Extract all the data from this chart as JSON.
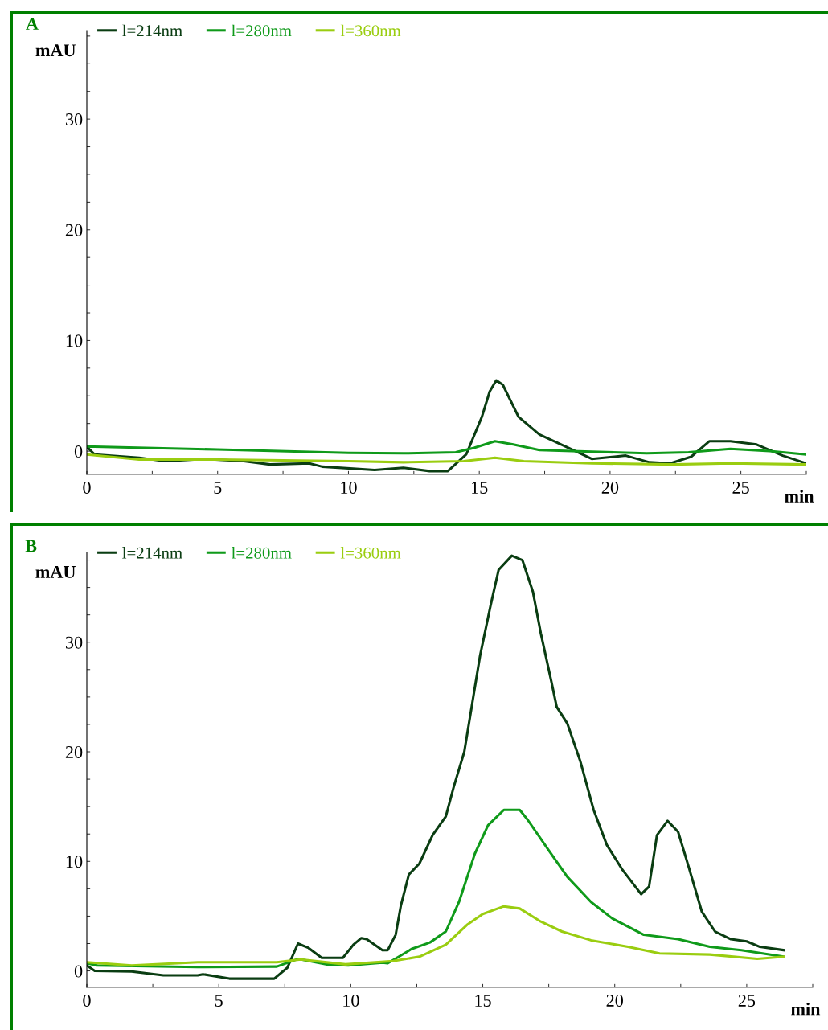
{
  "chart_data": [
    {
      "type": "line",
      "title": "A",
      "xlabel": "min",
      "ylabel": "mAU",
      "xlim": [
        0,
        27.5
      ],
      "ylim": [
        -2.1,
        38
      ],
      "xticks": [
        0,
        5,
        10,
        15,
        20,
        25
      ],
      "yticks": [
        0,
        10,
        20,
        30
      ],
      "legend": "top left",
      "series": [
        {
          "name": "l=214nm",
          "color": "#0a3d12",
          "x": [
            0,
            0.3,
            2,
            3,
            4.5,
            6,
            7,
            8.5,
            9,
            11,
            12.1,
            13.1,
            13.8,
            14.5,
            15.1,
            15.4,
            15.65,
            15.9,
            16.5,
            17.3,
            18.5,
            19.3,
            20.6,
            21.5,
            22.3,
            23.1,
            23.8,
            24.6,
            25.6,
            26.6,
            27.5
          ],
          "values": [
            0.4,
            -0.3,
            -0.6,
            -0.9,
            -0.7,
            -0.9,
            -1.2,
            -1.1,
            -1.4,
            -1.7,
            -1.5,
            -1.8,
            -1.8,
            -0.3,
            3.1,
            5.4,
            6.4,
            6.0,
            3.1,
            1.5,
            0.2,
            -0.7,
            -0.4,
            -1.0,
            -1.1,
            -0.5,
            0.9,
            0.9,
            0.6,
            -0.4,
            -1.1
          ]
        },
        {
          "name": "l=280nm",
          "color": "#0f9a1a",
          "x": [
            0,
            0.3,
            5,
            10,
            12.1,
            14.1,
            14.8,
            15.6,
            16.3,
            17.3,
            19.3,
            21.4,
            23.0,
            24.6,
            26.1,
            27.5
          ],
          "values": [
            0.4,
            0.4,
            0.15,
            -0.15,
            -0.2,
            -0.1,
            0.3,
            0.9,
            0.6,
            0.1,
            -0.05,
            -0.2,
            -0.1,
            0.2,
            0.0,
            -0.3
          ]
        },
        {
          "name": "l=360nm",
          "color": "#9acd10",
          "x": [
            0,
            2,
            5,
            10,
            12.1,
            14.4,
            15.6,
            16.7,
            19.3,
            22.4,
            24.6,
            27.5
          ],
          "values": [
            -0.3,
            -0.75,
            -0.75,
            -0.9,
            -1.0,
            -0.9,
            -0.6,
            -0.9,
            -1.1,
            -1.2,
            -1.1,
            -1.2
          ]
        }
      ]
    },
    {
      "type": "line",
      "title": "B",
      "xlabel": "min",
      "ylabel": "mAU",
      "xlim": [
        0,
        27.5
      ],
      "ylim": [
        -1.5,
        38.2
      ],
      "xticks": [
        0,
        5,
        10,
        15,
        20,
        25
      ],
      "yticks": [
        0,
        10,
        20,
        30
      ],
      "legend": "top left",
      "series": [
        {
          "name": "l=214nm",
          "color": "#0a3d12",
          "x": [
            0,
            0.3,
            1.7,
            2.9,
            4.2,
            4.4,
            5.4,
            7.1,
            7.6,
            8.0,
            8.4,
            8.9,
            9.7,
            10.1,
            10.4,
            10.6,
            11.2,
            11.4,
            11.7,
            11.9,
            12.2,
            12.6,
            13.1,
            13.6,
            13.9,
            14.3,
            14.6,
            14.9,
            15.3,
            15.6,
            16.1,
            16.5,
            16.9,
            17.2,
            17.6,
            17.8,
            18.2,
            18.7,
            19.2,
            19.7,
            20.3,
            21.0,
            21.3,
            21.6,
            22.0,
            22.4,
            22.8,
            23.3,
            23.8,
            24.4,
            25.0,
            25.5,
            26.4
          ],
          "values": [
            0.5,
            0.0,
            -0.05,
            -0.4,
            -0.4,
            -0.3,
            -0.7,
            -0.7,
            0.3,
            2.5,
            2.1,
            1.2,
            1.2,
            2.4,
            3.0,
            2.9,
            1.9,
            1.9,
            3.3,
            6.0,
            8.8,
            9.8,
            12.4,
            14.1,
            16.8,
            20.0,
            24.4,
            28.8,
            33.4,
            36.6,
            37.9,
            37.5,
            34.6,
            30.8,
            26.4,
            24.1,
            22.6,
            19.1,
            14.7,
            11.5,
            9.2,
            7.0,
            7.7,
            12.4,
            13.7,
            12.7,
            9.5,
            5.4,
            3.6,
            2.9,
            2.7,
            2.2,
            1.9
          ]
        },
        {
          "name": "l=280nm",
          "color": "#0f9a1a",
          "x": [
            0,
            0.4,
            4.2,
            7.2,
            8.0,
            9.1,
            9.9,
            11.2,
            11.4,
            12.3,
            13.0,
            13.6,
            14.1,
            14.7,
            15.2,
            15.8,
            16.4,
            16.7,
            17.5,
            18.2,
            19.1,
            19.9,
            21.1,
            22.4,
            23.6,
            24.8,
            26.4
          ],
          "values": [
            0.7,
            0.5,
            0.35,
            0.4,
            1.1,
            0.6,
            0.5,
            0.75,
            0.7,
            2.0,
            2.6,
            3.6,
            6.3,
            10.7,
            13.3,
            14.7,
            14.7,
            13.8,
            11.0,
            8.6,
            6.3,
            4.8,
            3.3,
            2.9,
            2.2,
            1.9,
            1.3
          ]
        },
        {
          "name": "l=360nm",
          "color": "#9acd10",
          "x": [
            0,
            1.7,
            4.2,
            7.2,
            8.1,
            9.8,
            11.6,
            12.6,
            13.6,
            14.4,
            15.0,
            15.8,
            16.4,
            17.2,
            18.0,
            19.1,
            20.5,
            21.7,
            23.6,
            25.4,
            26.4
          ],
          "values": [
            0.8,
            0.5,
            0.8,
            0.8,
            1.05,
            0.6,
            0.9,
            1.3,
            2.4,
            4.2,
            5.2,
            5.9,
            5.7,
            4.5,
            3.6,
            2.8,
            2.2,
            1.6,
            1.5,
            1.1,
            1.3
          ]
        }
      ]
    }
  ]
}
